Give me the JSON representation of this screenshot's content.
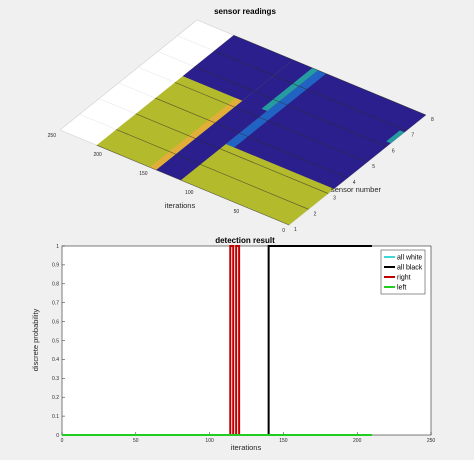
{
  "chart_data": [
    {
      "type": "heatmap",
      "title": "sensor readings",
      "xlabel": "iterations",
      "ylabel": "sensor number",
      "x_ticks": [
        0,
        50,
        100,
        150,
        200,
        250
      ],
      "y_ticks": [
        1,
        2,
        3,
        4,
        5,
        6,
        7,
        8
      ],
      "xlim": [
        0,
        250
      ],
      "ylim": [
        1,
        8
      ],
      "data_extent_iterations": 210,
      "colormap": [
        "#2a1f8c",
        "#1f7bd6",
        "#24c7a6",
        "#b3ba2c",
        "#f0ab3c"
      ],
      "regions": [
        {
          "iter_start": 0,
          "iter_end": 210,
          "sensor_start": 1,
          "sensor_end": 8,
          "level": 0.86
        },
        {
          "iter_start": 0,
          "iter_end": 118,
          "sensor_start": 3.3,
          "sensor_end": 8,
          "level": 0.0
        },
        {
          "iter_start": 118,
          "iter_end": 145,
          "sensor_start": 1,
          "sensor_end": 8,
          "level": 0.0
        },
        {
          "iter_start": 145,
          "iter_end": 210,
          "sensor_start": 5.4,
          "sensor_end": 8,
          "level": 0.0
        }
      ],
      "grid": true
    },
    {
      "type": "line",
      "title": "detection result",
      "xlabel": "iterations",
      "ylabel": "discrete probability",
      "xlim": [
        0,
        250
      ],
      "ylim": [
        0,
        1
      ],
      "x_ticks": [
        0,
        50,
        100,
        150,
        200,
        250
      ],
      "y_ticks": [
        0,
        0.1,
        0.2,
        0.3,
        0.4,
        0.5,
        0.6,
        0.7,
        0.8,
        0.9,
        1
      ],
      "legend_position": "top-right",
      "series": [
        {
          "name": "all white",
          "color": "#40d6d6",
          "x": [
            0,
            210
          ],
          "y": [
            0,
            0
          ]
        },
        {
          "name": "all black",
          "color": "#000000",
          "x": [
            0,
            140,
            140,
            210
          ],
          "y": [
            0,
            0,
            1,
            1
          ]
        },
        {
          "name": "right",
          "color": "#c00000",
          "x": [
            0,
            114,
            114,
            116,
            116,
            118,
            118,
            120,
            120,
            210
          ],
          "y": [
            0,
            0,
            1,
            1,
            0,
            0,
            1,
            1,
            0,
            0
          ]
        },
        {
          "name": "left",
          "color": "#22cc22",
          "x": [
            0,
            210
          ],
          "y": [
            0,
            0
          ]
        }
      ]
    }
  ]
}
